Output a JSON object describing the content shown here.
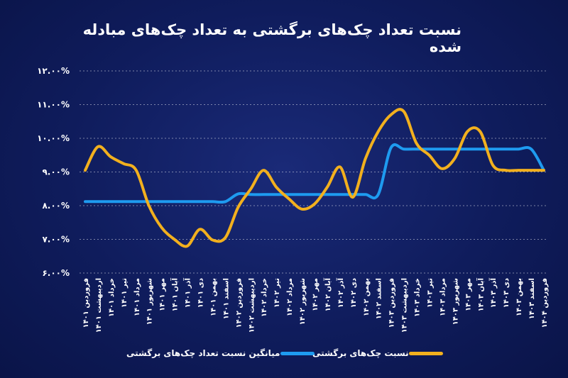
{
  "title": "نسبت تعداد چک‌های برگشتی به تعداد چک‌های مبادله شده",
  "chart_data": {
    "type": "line",
    "ylim": [
      6,
      12
    ],
    "y_ticks": [
      "۱۲.۰۰%",
      "۱۱.۰۰%",
      "۱۰.۰۰%",
      "۹.۰۰%",
      "۸.۰۰%",
      "۷.۰۰%",
      "۶.۰۰%"
    ],
    "y_tick_values": [
      12,
      11,
      10,
      9,
      8,
      7,
      6
    ],
    "grid": "horizontal",
    "categories": [
      "فروردین ۱۴۰۱",
      "اردیبهشت ۱۴۰۱",
      "خرداد ۱۴۰۱",
      "تیر ۱۴۰۱",
      "مرداد ۱۴۰۱",
      "شهریور ۱۴۰۱",
      "مهر ۱۴۰۱",
      "آبان ۱۴۰۱",
      "آذر ۱۴۰۱",
      "دی ۱۴۰۱",
      "بهمن ۱۴۰۱",
      "اسفند ۱۴۰۱",
      "فروردین ۱۴۰۲",
      "اردیبهشت ۱۴۰۲",
      "خرداد ۱۴۰۲",
      "تیر ۱۴۰۲",
      "مرداد ۱۴۰۲",
      "شهریور ۱۴۰۲",
      "مهر ۱۴۰۲",
      "آبان ۱۴۰۲",
      "آذر ۱۴۰۲",
      "دی ۱۴۰۲",
      "بهمن ۱۴۰۲",
      "اسفند ۱۴۰۲",
      "فروردین ۱۴۰۳",
      "اردیبهشت ۱۴۰۳",
      "خرداد ۱۴۰۳",
      "تیر ۱۴۰۳",
      "مرداد ۱۴۰۳",
      "شهریور ۱۴۰۳",
      "مهر ۱۴۰۳",
      "آبان ۱۴۰۳",
      "آذر ۱۴۰۳",
      "دی ۱۴۰۳",
      "بهمن ۱۴۰۳",
      "اسفند ۱۴۰۳",
      "فروردین ۱۴۰۴"
    ],
    "series": [
      {
        "name": "میانگین نسبت تعداد چک‌های برگشتی",
        "color": "#1e9bf0",
        "values": [
          8.12,
          8.12,
          8.12,
          8.12,
          8.12,
          8.12,
          8.12,
          8.12,
          8.12,
          8.12,
          8.12,
          8.12,
          8.35,
          8.33,
          8.33,
          8.33,
          8.33,
          8.33,
          8.33,
          8.33,
          8.33,
          8.33,
          8.33,
          8.33,
          9.72,
          9.68,
          9.68,
          9.68,
          9.68,
          9.68,
          9.68,
          9.68,
          9.68,
          9.68,
          9.68,
          9.68,
          9.05
        ]
      },
      {
        "name": "نسبت چک‌های برگشتی",
        "color": "#f2b01e",
        "values": [
          9.05,
          9.75,
          9.45,
          9.25,
          9.05,
          8.0,
          7.35,
          7.0,
          6.8,
          7.3,
          6.98,
          7.05,
          7.95,
          8.5,
          9.05,
          8.55,
          8.2,
          7.9,
          8.05,
          8.55,
          9.15,
          8.25,
          9.4,
          10.2,
          10.7,
          10.8,
          9.85,
          9.5,
          9.1,
          9.4,
          10.2,
          10.2,
          9.2,
          9.05,
          9.05,
          9.05,
          9.05
        ]
      }
    ]
  },
  "legend": {
    "avg_label": "میانگین نسبت تعداد چک‌های برگشتی",
    "ratio_label": "نسبت چک‌های برگشتی",
    "avg_color": "#1e9bf0",
    "ratio_color": "#f2b01e"
  }
}
